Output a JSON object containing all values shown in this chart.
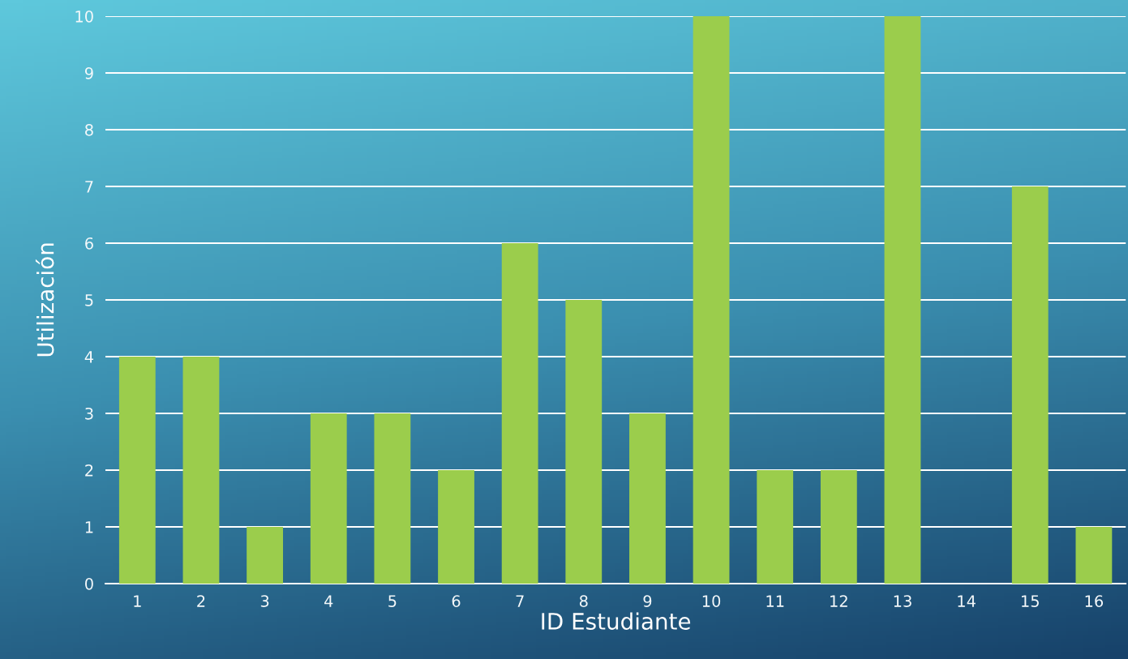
{
  "chart_data": {
    "type": "bar",
    "xlabel": "ID Estudiante",
    "ylabel": "Utilización",
    "categories": [
      "1",
      "2",
      "3",
      "4",
      "5",
      "6",
      "7",
      "8",
      "9",
      "10",
      "11",
      "12",
      "13",
      "14",
      "15",
      "16"
    ],
    "values": [
      4,
      4,
      1,
      3,
      3,
      2,
      6,
      5,
      3,
      10,
      2,
      2,
      10,
      0,
      7,
      1
    ],
    "color": "#9bcd4c",
    "ylim": [
      0,
      10
    ],
    "yticks": [
      0,
      1,
      2,
      3,
      4,
      5,
      6,
      7,
      8,
      9,
      10
    ],
    "grid": "y"
  }
}
